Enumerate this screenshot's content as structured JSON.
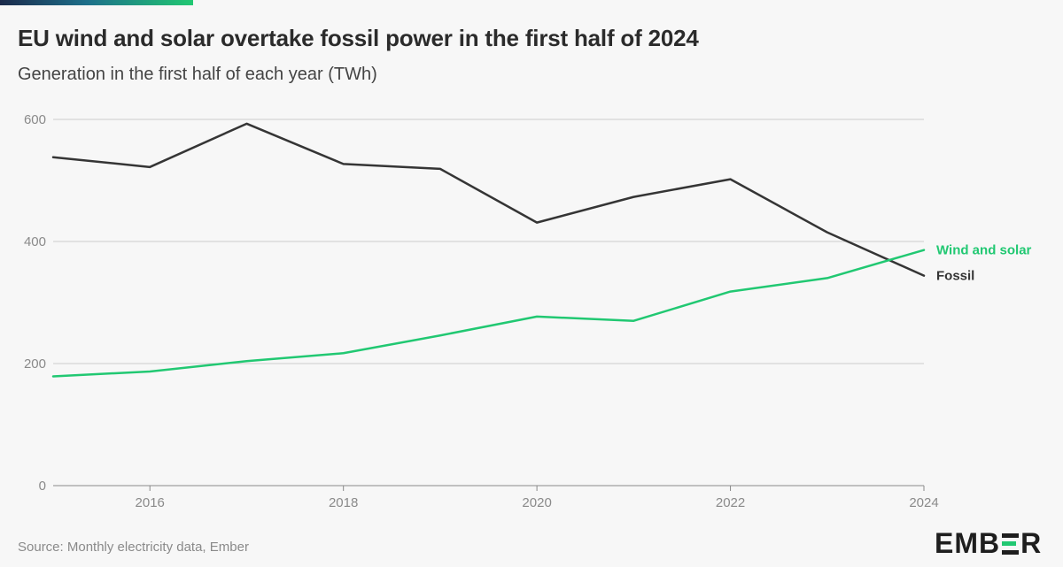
{
  "title": "EU wind and solar overtake fossil power in the first half of 2024",
  "subtitle": "Generation in the first half of each year (TWh)",
  "source": "Source: Monthly electricity data, Ember",
  "logo": {
    "left": "EMB",
    "right": "R",
    "full": "EMBER"
  },
  "colors": {
    "fossil": "#353535",
    "wind_solar": "#21c872",
    "grid": "#cccccc",
    "axis": "#8a8a8a"
  },
  "chart_data": {
    "type": "line",
    "title": "EU wind and solar overtake fossil power in the first half of 2024",
    "xlabel": "",
    "ylabel": "Generation in the first half of each year (TWh)",
    "x": [
      2015,
      2016,
      2017,
      2018,
      2019,
      2020,
      2021,
      2022,
      2023,
      2024
    ],
    "xlim": [
      2015,
      2024
    ],
    "ylim": [
      0,
      600
    ],
    "x_ticks": [
      2016,
      2018,
      2020,
      2022,
      2024
    ],
    "y_ticks": [
      0,
      200,
      400,
      600
    ],
    "grid": true,
    "series": [
      {
        "name": "Fossil",
        "color": "#353535",
        "values": [
          538,
          522,
          593,
          527,
          519,
          431,
          473,
          502,
          415,
          344
        ]
      },
      {
        "name": "Wind and solar",
        "color": "#21c872",
        "values": [
          179,
          187,
          204,
          217,
          246,
          277,
          270,
          318,
          340,
          386
        ]
      }
    ]
  }
}
